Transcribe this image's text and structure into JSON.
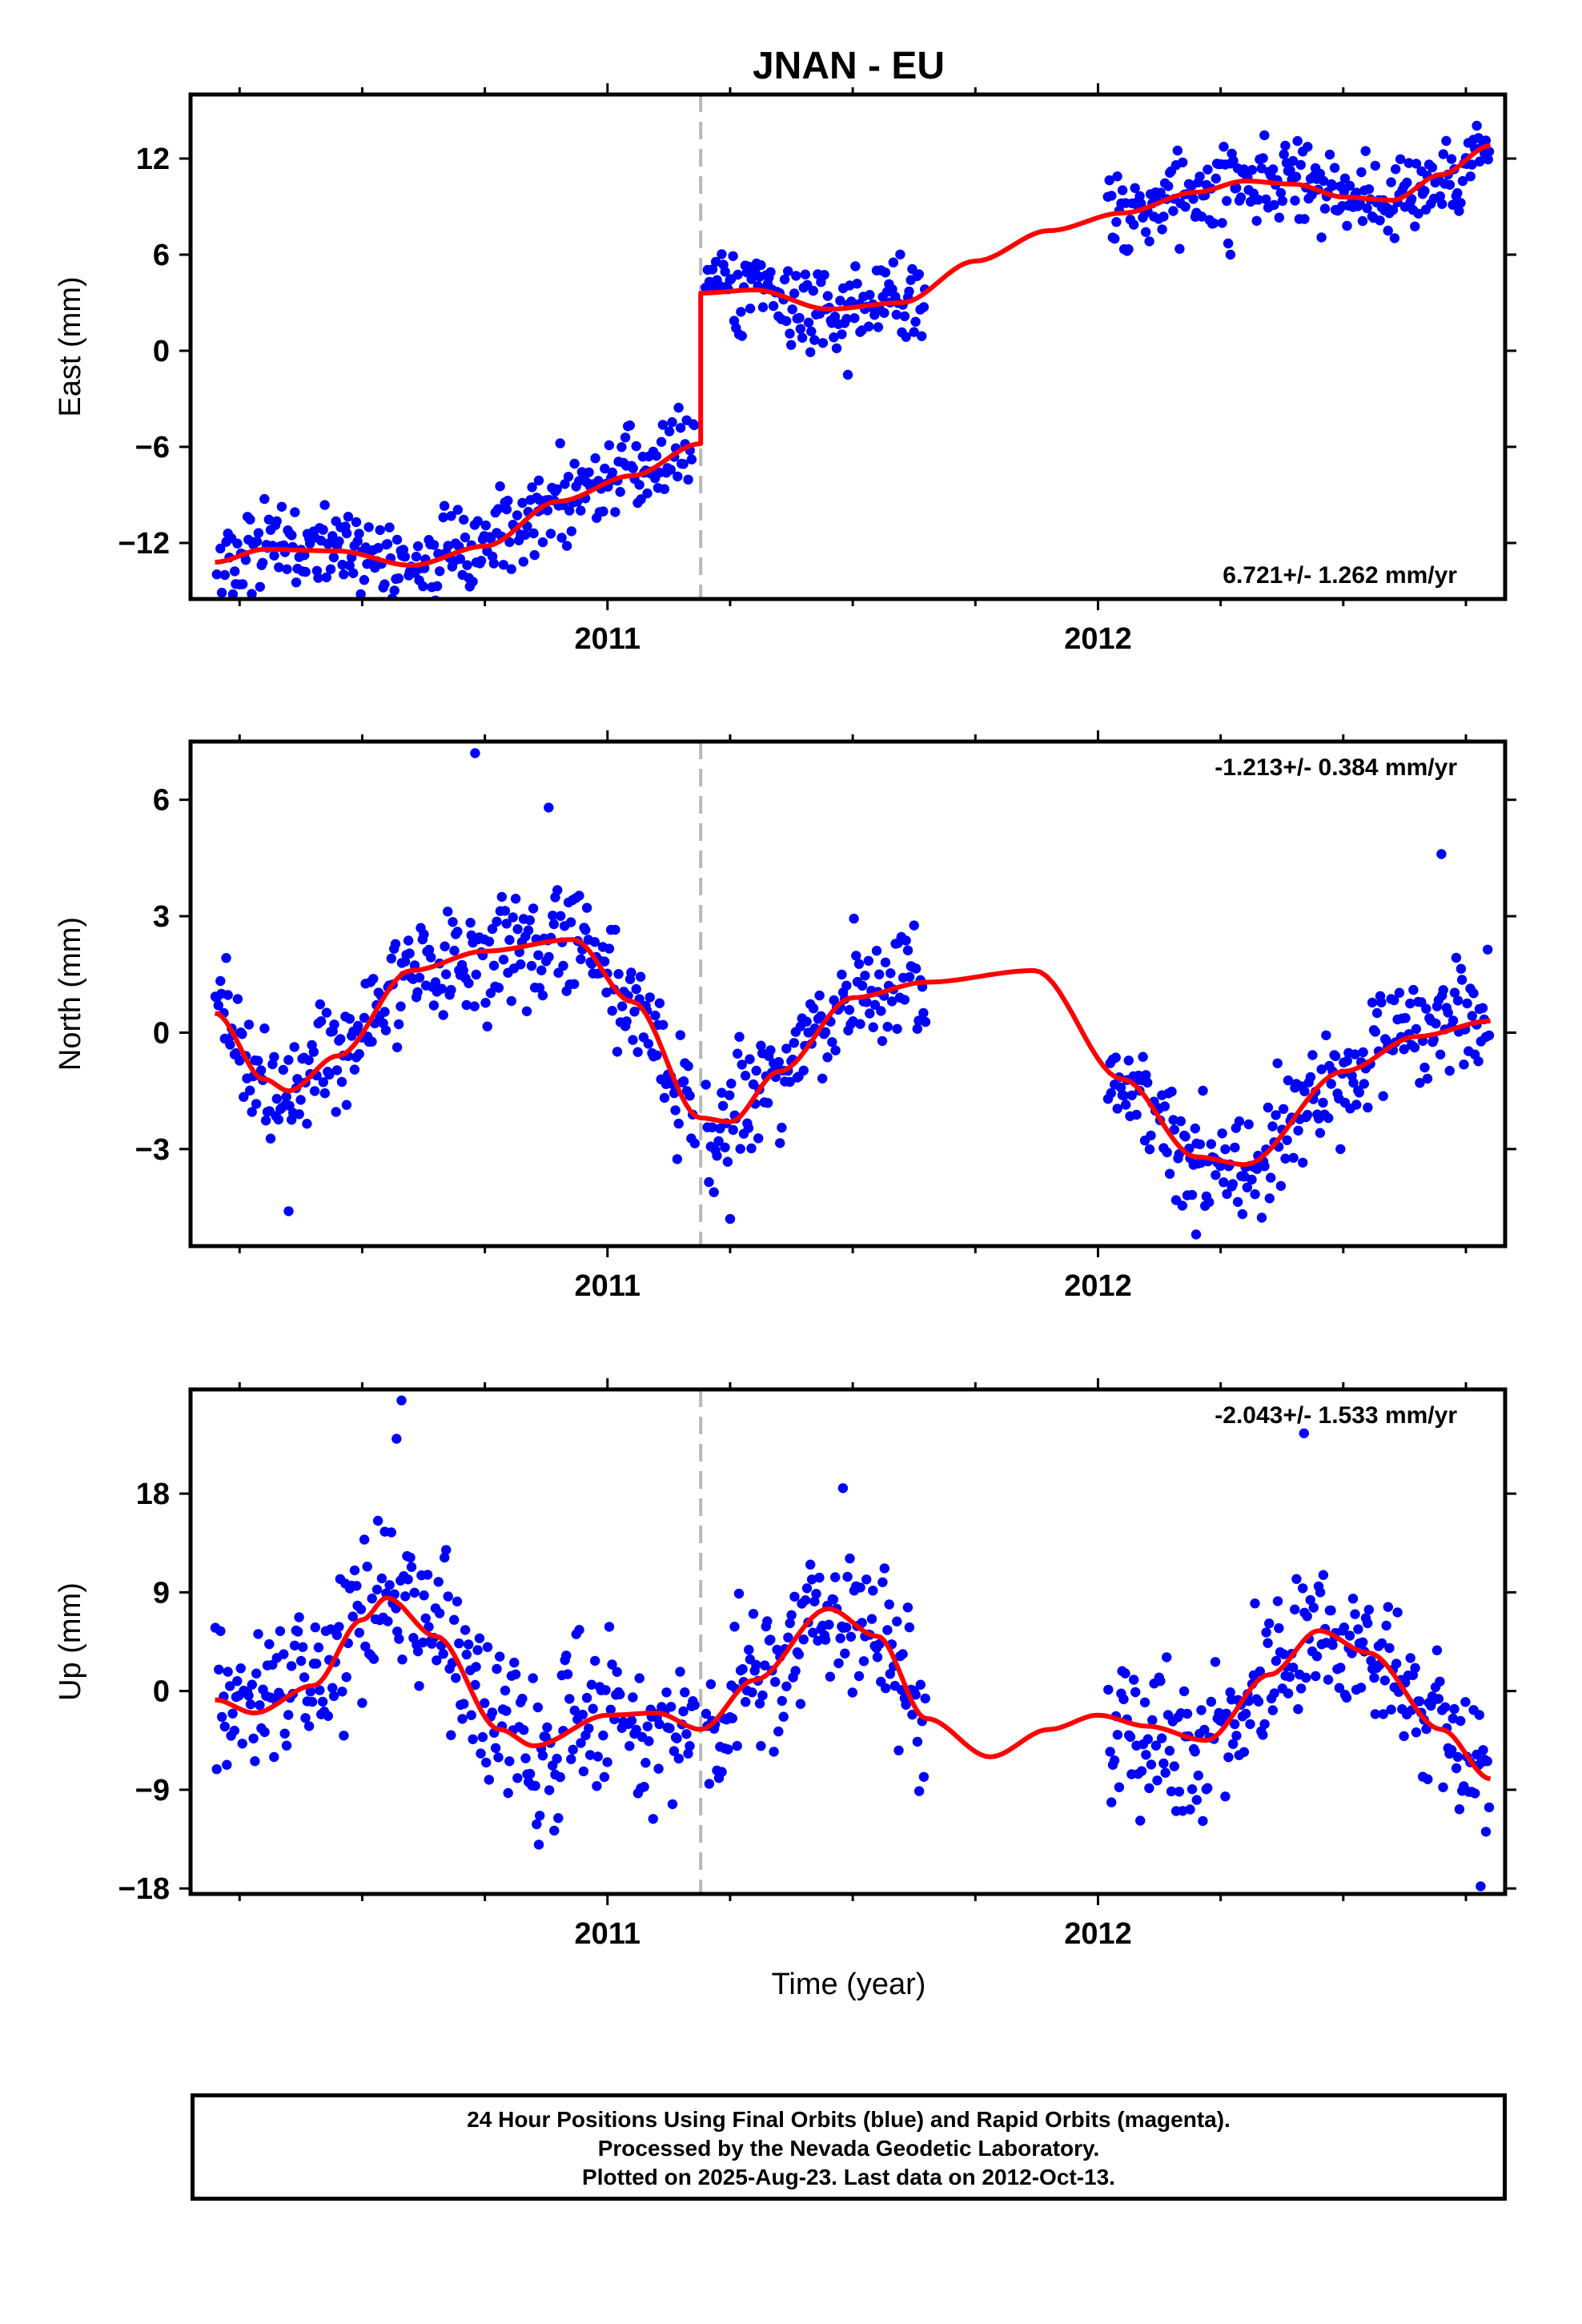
{
  "chart_data": {
    "type": "scatter",
    "title": "JNAN - EU",
    "xlabel": "Time (year)",
    "xlim": [
      2010.15,
      2012.83
    ],
    "major_ticks": [
      2011,
      2012
    ],
    "major_tick_labels": [
      "2011",
      "2012"
    ],
    "minor_tick_step": 0.25,
    "offset_epoch": 2011.19,
    "colors": {
      "final_orbits": "#0000ff",
      "model_fit": "#ff0000",
      "offset_line": "#b8b8b8"
    },
    "panels": [
      {
        "name": "east",
        "ylabel": "East (mm)",
        "ylim": [
          -15.5,
          16
        ],
        "yticks": [
          -12,
          -6,
          0,
          6,
          12
        ],
        "ytick_labels": [
          "−12",
          "−6",
          "0",
          "6",
          "12"
        ],
        "rate": "6.721+/- 1.262 mm/yr",
        "rate_position": "bottom-right",
        "fit_knots": [
          [
            2010.2,
            -13.2
          ],
          [
            2010.3,
            -12.4
          ],
          [
            2010.45,
            -12.5
          ],
          [
            2010.6,
            -13.4
          ],
          [
            2010.75,
            -12.2
          ],
          [
            2010.9,
            -9.4
          ],
          [
            2011.05,
            -7.8
          ],
          [
            2011.19,
            -5.8
          ],
          [
            2011.19,
            3.6
          ],
          [
            2011.3,
            3.8
          ],
          [
            2011.45,
            2.6
          ],
          [
            2011.6,
            3.0
          ],
          [
            2011.75,
            5.6
          ],
          [
            2011.9,
            7.5
          ],
          [
            2012.05,
            8.6
          ],
          [
            2012.2,
            9.9
          ],
          [
            2012.3,
            10.6
          ],
          [
            2012.4,
            10.4
          ],
          [
            2012.5,
            9.6
          ],
          [
            2012.6,
            9.4
          ],
          [
            2012.7,
            11.0
          ],
          [
            2012.8,
            12.8
          ]
        ],
        "segments": [
          [
            2010.2,
            2011.18,
            3.2
          ],
          [
            2011.2,
            2011.65,
            2.8
          ],
          [
            2012.02,
            2012.8,
            3.2
          ]
        ],
        "noise": 1.35,
        "outliers": [
          [
            2011.49,
            -1.5
          ],
          [
            2012.27,
            6.0
          ],
          [
            2010.86,
            -8.1
          ]
        ]
      },
      {
        "name": "north",
        "ylabel": "North (mm)",
        "ylim": [
          -5.5,
          7.5
        ],
        "yticks": [
          -3,
          0,
          3,
          6
        ],
        "ytick_labels": [
          "−3",
          "0",
          "3",
          "6"
        ],
        "rate": "-1.213+/- 0.384 mm/yr",
        "rate_position": "top-right",
        "fit_knots": [
          [
            2010.2,
            0.5
          ],
          [
            2010.3,
            -1.2
          ],
          [
            2010.35,
            -1.5
          ],
          [
            2010.45,
            -0.6
          ],
          [
            2010.6,
            1.6
          ],
          [
            2010.75,
            2.1
          ],
          [
            2010.93,
            2.4
          ],
          [
            2011.05,
            0.8
          ],
          [
            2011.19,
            -2.2
          ],
          [
            2011.25,
            -2.3
          ],
          [
            2011.35,
            -1.0
          ],
          [
            2011.5,
            0.9
          ],
          [
            2011.65,
            1.3
          ],
          [
            2011.87,
            1.6
          ],
          [
            2012.05,
            -1.2
          ],
          [
            2012.2,
            -3.2
          ],
          [
            2012.3,
            -3.4
          ],
          [
            2012.5,
            -1.0
          ],
          [
            2012.65,
            -0.1
          ],
          [
            2012.8,
            0.3
          ]
        ],
        "segments": [
          [
            2010.2,
            2011.18,
            3.2
          ],
          [
            2011.2,
            2011.65,
            2.8
          ],
          [
            2012.02,
            2012.8,
            3.2
          ]
        ],
        "noise": 0.75,
        "outliers": [
          [
            2010.73,
            7.2
          ],
          [
            2010.88,
            5.8
          ],
          [
            2011.25,
            -4.8
          ],
          [
            2012.2,
            -5.2
          ],
          [
            2012.7,
            4.6
          ],
          [
            2010.35,
            -4.6
          ]
        ]
      },
      {
        "name": "up",
        "ylabel": "Up (mm)",
        "ylim": [
          -18.5,
          27.5
        ],
        "yticks": [
          -18,
          -9,
          0,
          9,
          18
        ],
        "ytick_labels": [
          "−18",
          "−9",
          "0",
          "9",
          "18"
        ],
        "rate": "-2.043+/- 1.533 mm/yr",
        "rate_position": "top-right",
        "fit_knots": [
          [
            2010.2,
            -0.8
          ],
          [
            2010.28,
            -2.0
          ],
          [
            2010.4,
            0.5
          ],
          [
            2010.5,
            6.5
          ],
          [
            2010.55,
            8.5
          ],
          [
            2010.65,
            5.0
          ],
          [
            2010.78,
            -3.5
          ],
          [
            2010.85,
            -5.0
          ],
          [
            2011.0,
            -2.2
          ],
          [
            2011.1,
            -2.0
          ],
          [
            2011.19,
            -3.5
          ],
          [
            2011.3,
            1.0
          ],
          [
            2011.45,
            7.5
          ],
          [
            2011.55,
            5.0
          ],
          [
            2011.65,
            -2.5
          ],
          [
            2011.78,
            -6.0
          ],
          [
            2011.9,
            -3.5
          ],
          [
            2012.0,
            -2.2
          ],
          [
            2012.1,
            -3.2
          ],
          [
            2012.22,
            -4.5
          ],
          [
            2012.35,
            1.5
          ],
          [
            2012.45,
            5.5
          ],
          [
            2012.55,
            3.5
          ],
          [
            2012.7,
            -3.5
          ],
          [
            2012.8,
            -8.0
          ]
        ],
        "segments": [
          [
            2010.2,
            2011.18,
            3.2
          ],
          [
            2011.2,
            2011.65,
            2.8
          ],
          [
            2012.02,
            2012.8,
            3.2
          ]
        ],
        "noise": 3.6,
        "outliers": [
          [
            2010.58,
            26.5
          ],
          [
            2010.57,
            23.0
          ],
          [
            2011.48,
            18.5
          ],
          [
            2012.42,
            23.5
          ],
          [
            2010.86,
            -14.0
          ],
          [
            2012.78,
            -17.8
          ]
        ]
      }
    ]
  },
  "footer": {
    "line1": "24 Hour Positions Using Final Orbits (blue) and Rapid Orbits (magenta).",
    "line2": "Processed by the Nevada Geodetic Laboratory.",
    "line3": "Plotted on 2025-Aug-23. Last data on 2012-Oct-13."
  }
}
